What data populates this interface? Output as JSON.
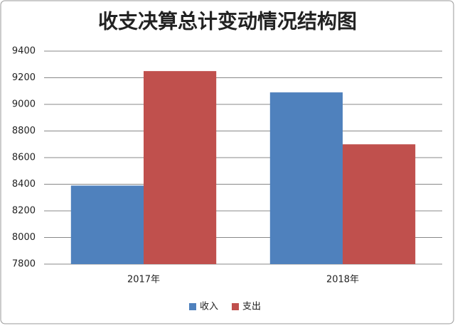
{
  "chart_data": {
    "type": "bar",
    "title": "收支决算总计变动情况结构图",
    "categories": [
      "2017年",
      "2018年"
    ],
    "series": [
      {
        "name": "收入",
        "color": "#4f81bd",
        "values": [
          8390,
          9090
        ]
      },
      {
        "name": "支出",
        "color": "#c0504d",
        "values": [
          9250,
          8700
        ]
      }
    ],
    "ylim": [
      7800,
      9400
    ],
    "yticks": [
      7800,
      8000,
      8200,
      8400,
      8600,
      8800,
      9000,
      9200,
      9400
    ],
    "grid": true,
    "legend": "bottom"
  }
}
